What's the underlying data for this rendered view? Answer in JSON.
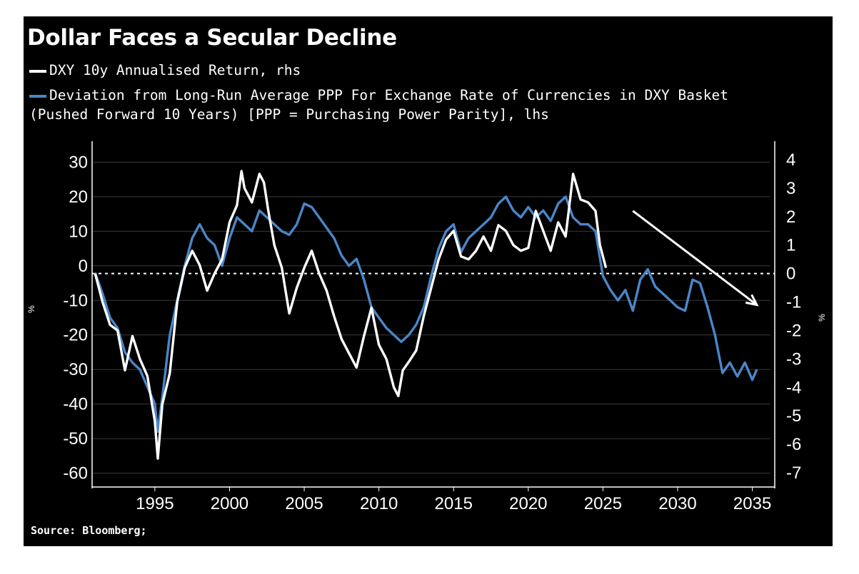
{
  "title": "Dollar Faces a Secular Decline",
  "legend": {
    "white_label": "DXY 10y Annualised Return, rhs",
    "blue_label_line1": "Deviation from Long-Run Average PPP For Exchange Rate of Currencies in DXY Basket",
    "blue_label_line2": "(Pushed Forward 10 Years) [PPP = Purchasing Power Parity], lhs"
  },
  "source": "Source: Bloomberg;",
  "axis_markers": {
    "left": "%",
    "right": "%"
  },
  "colors": {
    "background": "#000000",
    "white_series": "#ffffff",
    "blue_series": "#4a86c8",
    "zero_line": "#ffffff",
    "arrow": "#ffffff"
  },
  "chart_data": {
    "type": "line",
    "title": "Dollar Faces a Secular Decline",
    "xlim": [
      1990.8,
      2036.5
    ],
    "x_ticks": [
      "1995",
      "2000",
      "2005",
      "2010",
      "2015",
      "2020",
      "2025",
      "2030",
      "2035"
    ],
    "y_left": {
      "ticks": [
        "30",
        "20",
        "10",
        "0",
        "-10",
        "-20",
        "-30",
        "-40",
        "-50",
        "-60"
      ],
      "ylim": [
        -64,
        34
      ]
    },
    "y_right": {
      "ticks": [
        "4",
        "3",
        "2",
        "1",
        "0",
        "-1",
        "-2",
        "-3",
        "-4",
        "-5",
        "-6",
        "-7"
      ],
      "ylim": [
        -7.5,
        4.4
      ]
    },
    "zero_line": {
      "axis": "right",
      "value": 0,
      "style": "dotted"
    },
    "trend_arrow": {
      "from": [
        2027.0,
        2.2
      ],
      "to": [
        2035.3,
        -1.1
      ],
      "axis": "right"
    },
    "series": [
      {
        "name": "DXY 10y Annualised Return, rhs",
        "axis": "right",
        "color": "#ffffff",
        "x": [
          1991.0,
          1991.5,
          1992.0,
          1992.5,
          1993.0,
          1993.5,
          1994.0,
          1994.5,
          1995.0,
          1995.2,
          1995.5,
          1996.0,
          1996.5,
          1997.0,
          1997.5,
          1998.0,
          1998.5,
          1999.0,
          1999.5,
          2000.0,
          2000.5,
          2000.8,
          2001.0,
          2001.5,
          2002.0,
          2002.3,
          2002.6,
          2003.0,
          2003.5,
          2004.0,
          2004.5,
          2005.0,
          2005.5,
          2006.0,
          2006.5,
          2007.0,
          2007.5,
          2008.0,
          2008.5,
          2009.0,
          2009.5,
          2010.0,
          2010.5,
          2011.0,
          2011.3,
          2011.6,
          2012.0,
          2012.5,
          2013.0,
          2013.5,
          2014.0,
          2014.5,
          2015.0,
          2015.5,
          2016.0,
          2016.5,
          2017.0,
          2017.5,
          2018.0,
          2018.5,
          2019.0,
          2019.5,
          2020.0,
          2020.5,
          2021.0,
          2021.5,
          2022.0,
          2022.5,
          2022.8,
          2023.0,
          2023.5,
          2024.0,
          2024.5,
          2024.8,
          2025.0,
          2025.2
        ],
        "values": [
          0.0,
          -1.0,
          -1.8,
          -2.0,
          -3.4,
          -2.2,
          -3.0,
          -3.6,
          -5.2,
          -6.5,
          -4.6,
          -3.5,
          -1.0,
          0.2,
          0.8,
          0.3,
          -0.6,
          0.0,
          0.5,
          1.8,
          2.4,
          3.6,
          3.0,
          2.5,
          3.5,
          3.2,
          2.2,
          1.0,
          0.2,
          -1.4,
          -0.5,
          0.2,
          0.8,
          0.0,
          -0.6,
          -1.5,
          -2.3,
          -2.8,
          -3.3,
          -2.2,
          -1.2,
          -2.5,
          -3.0,
          -4.0,
          -4.3,
          -3.4,
          -3.1,
          -2.7,
          -1.5,
          -0.5,
          0.5,
          1.2,
          1.5,
          0.6,
          0.5,
          0.8,
          1.3,
          0.8,
          1.7,
          1.5,
          1.0,
          0.8,
          0.9,
          2.2,
          1.5,
          0.8,
          1.8,
          1.3,
          2.6,
          3.5,
          2.6,
          2.5,
          2.2,
          1.0,
          0.6,
          0.2
        ]
      },
      {
        "name": "Deviation from Long-Run Average PPP For Exchange Rate of Currencies in DXY Basket (Pushed Forward 10 Years) [PPP = Purchasing Power Parity], lhs",
        "axis": "left",
        "color": "#4a86c8",
        "x": [
          1991.0,
          1991.5,
          1992.0,
          1992.5,
          1993.0,
          1993.5,
          1994.0,
          1994.5,
          1995.0,
          1995.2,
          1995.5,
          1996.0,
          1996.5,
          1997.0,
          1997.5,
          1998.0,
          1998.5,
          1999.0,
          1999.5,
          2000.0,
          2000.5,
          2001.0,
          2001.5,
          2002.0,
          2002.5,
          2003.0,
          2003.5,
          2004.0,
          2004.5,
          2005.0,
          2005.5,
          2006.0,
          2006.5,
          2007.0,
          2007.5,
          2008.0,
          2008.5,
          2009.0,
          2009.5,
          2010.0,
          2010.5,
          2011.0,
          2011.5,
          2012.0,
          2012.5,
          2013.0,
          2013.5,
          2014.0,
          2014.5,
          2015.0,
          2015.5,
          2016.0,
          2016.5,
          2017.0,
          2017.5,
          2018.0,
          2018.5,
          2019.0,
          2019.5,
          2020.0,
          2020.5,
          2021.0,
          2021.5,
          2022.0,
          2022.5,
          2023.0,
          2023.5,
          2024.0,
          2024.5,
          2025.0,
          2025.5,
          2026.0,
          2026.5,
          2027.0,
          2027.5,
          2028.0,
          2028.5,
          2029.0,
          2029.5,
          2030.0,
          2030.5,
          2031.0,
          2031.5,
          2032.0,
          2032.5,
          2033.0,
          2033.5,
          2034.0,
          2034.5,
          2035.0,
          2035.3
        ],
        "values": [
          -2.0,
          -8.0,
          -15.0,
          -18.0,
          -25.0,
          -28.0,
          -30.0,
          -35.0,
          -40.0,
          -48.0,
          -38.0,
          -20.0,
          -10.0,
          0.0,
          8.0,
          12.0,
          8.0,
          6.0,
          0.0,
          8.0,
          14.0,
          12.0,
          10.0,
          16.0,
          14.0,
          12.0,
          10.0,
          9.0,
          12.0,
          18.0,
          17.0,
          14.0,
          11.0,
          8.0,
          3.0,
          0.0,
          2.0,
          -4.0,
          -12.0,
          -15.0,
          -18.0,
          -20.0,
          -22.0,
          -20.0,
          -17.0,
          -12.0,
          -3.0,
          5.0,
          10.0,
          12.0,
          4.0,
          8.0,
          10.0,
          12.0,
          14.0,
          18.0,
          20.0,
          16.0,
          14.0,
          17.0,
          14.0,
          16.0,
          13.0,
          18.0,
          20.0,
          14.0,
          12.0,
          12.0,
          10.0,
          -3.0,
          -7.0,
          -10.0,
          -7.0,
          -13.0,
          -4.0,
          -1.0,
          -6.0,
          -8.0,
          -10.0,
          -12.0,
          -13.0,
          -4.0,
          -5.0,
          -12.0,
          -20.0,
          -31.0,
          -28.0,
          -32.0,
          -28.0,
          -33.0,
          -30.0
        ]
      }
    ]
  }
}
